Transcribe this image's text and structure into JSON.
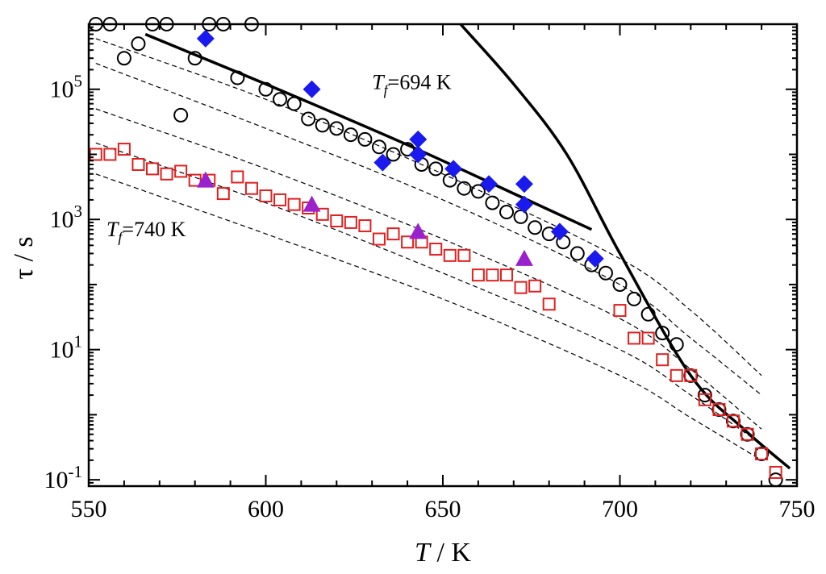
{
  "chart_data": {
    "type": "scatter",
    "x_axis": {
      "label_main": "T",
      "label_unit": " / K",
      "range": [
        550,
        750
      ],
      "ticks": [
        "550",
        "600",
        "650",
        "700",
        "750"
      ]
    },
    "y_axis": {
      "label": "τ / s",
      "scale": "log",
      "range": [
        0.08,
        1000000
      ],
      "ticks": [
        {
          "base": "10",
          "exp": "-1",
          "value": 0.1
        },
        {
          "base": "10",
          "exp": "1",
          "value": 10
        },
        {
          "base": "10",
          "exp": "3",
          "value": 1000
        },
        {
          "base": "10",
          "exp": "5",
          "value": 100000
        }
      ]
    },
    "grid": false,
    "annotations": [
      {
        "main": "T",
        "sub": "f",
        "rest": "=694 K",
        "anchor": [
          630,
          100000
        ]
      },
      {
        "main": "T",
        "sub": "f",
        "rest": "=740 K",
        "anchor": [
          555,
          550
        ]
      }
    ],
    "series": [
      {
        "marker": "open-circle",
        "color": "#000000",
        "points": [
          [
            552,
            1000000
          ],
          [
            556,
            1000000
          ],
          [
            560,
            300000
          ],
          [
            564,
            500000
          ],
          [
            568,
            1000000
          ],
          [
            572,
            1000000
          ],
          [
            580,
            300000
          ],
          [
            584,
            1000000
          ],
          [
            588,
            1000000
          ],
          [
            596,
            1000000
          ],
          [
            576,
            40000
          ],
          [
            592,
            150000
          ],
          [
            600,
            100000
          ],
          [
            604,
            70000
          ],
          [
            608,
            60000
          ],
          [
            612,
            35000
          ],
          [
            616,
            28000
          ],
          [
            620,
            25000
          ],
          [
            624,
            20000
          ],
          [
            628,
            17000
          ],
          [
            632,
            13000
          ],
          [
            636,
            10000
          ],
          [
            640,
            12000
          ],
          [
            644,
            7000
          ],
          [
            648,
            6000
          ],
          [
            652,
            4000
          ],
          [
            656,
            3000
          ],
          [
            660,
            2700
          ],
          [
            664,
            1800
          ],
          [
            668,
            1300
          ],
          [
            672,
            1100
          ],
          [
            676,
            750
          ],
          [
            680,
            600
          ],
          [
            684,
            450
          ],
          [
            688,
            300
          ],
          [
            692,
            200
          ],
          [
            696,
            150
          ],
          [
            700,
            100
          ],
          [
            704,
            60
          ],
          [
            708,
            35
          ],
          [
            712,
            18
          ],
          [
            716,
            12
          ],
          [
            720,
            4
          ],
          [
            724,
            2
          ],
          [
            728,
            1.2
          ],
          [
            732,
            0.8
          ],
          [
            736,
            0.5
          ],
          [
            740,
            0.25
          ],
          [
            744,
            0.1
          ]
        ]
      },
      {
        "marker": "open-square",
        "color": "#e02020",
        "points": [
          [
            552,
            10000
          ],
          [
            556,
            10000
          ],
          [
            560,
            12000
          ],
          [
            564,
            7000
          ],
          [
            568,
            6000
          ],
          [
            572,
            5000
          ],
          [
            576,
            5500
          ],
          [
            580,
            4000
          ],
          [
            584,
            4000
          ],
          [
            588,
            2500
          ],
          [
            592,
            4500
          ],
          [
            596,
            3000
          ],
          [
            600,
            2300
          ],
          [
            604,
            2000
          ],
          [
            608,
            1700
          ],
          [
            612,
            1500
          ],
          [
            616,
            1200
          ],
          [
            620,
            950
          ],
          [
            624,
            900
          ],
          [
            628,
            800
          ],
          [
            632,
            500
          ],
          [
            636,
            600
          ],
          [
            640,
            450
          ],
          [
            644,
            450
          ],
          [
            648,
            350
          ],
          [
            652,
            280
          ],
          [
            656,
            280
          ],
          [
            660,
            140
          ],
          [
            664,
            140
          ],
          [
            668,
            140
          ],
          [
            672,
            90
          ],
          [
            676,
            95
          ],
          [
            680,
            50
          ],
          [
            700,
            40
          ],
          [
            704,
            15
          ],
          [
            708,
            15
          ],
          [
            712,
            7
          ],
          [
            716,
            4
          ],
          [
            720,
            4
          ],
          [
            724,
            1.7
          ],
          [
            728,
            1.2
          ],
          [
            732,
            0.8
          ],
          [
            736,
            0.5
          ],
          [
            740,
            0.25
          ],
          [
            744,
            0.13
          ]
        ]
      },
      {
        "marker": "filled-diamond",
        "color": "#1a1aee",
        "points": [
          [
            583,
            600000
          ],
          [
            613,
            100000
          ],
          [
            633,
            7500
          ],
          [
            643,
            17000
          ],
          [
            643,
            10000
          ],
          [
            653,
            6000
          ],
          [
            663,
            3500
          ],
          [
            673,
            3500
          ],
          [
            673,
            1700
          ],
          [
            683,
            650
          ],
          [
            693,
            250
          ]
        ]
      },
      {
        "marker": "filled-triangle",
        "color": "#9a22cc",
        "points": [
          [
            583,
            4000
          ],
          [
            613,
            1700
          ],
          [
            643,
            650
          ],
          [
            673,
            250
          ]
        ]
      }
    ],
    "lines": [
      {
        "style": "solid",
        "points": [
          [
            566,
            700000
          ],
          [
            600,
            120000
          ],
          [
            640,
            14000
          ],
          [
            670,
            2500
          ],
          [
            692,
            700
          ]
        ]
      },
      {
        "style": "solid",
        "points": [
          [
            655,
            1000000
          ],
          [
            670,
            120000
          ],
          [
            685,
            10000
          ],
          [
            700,
            300
          ],
          [
            720,
            4
          ],
          [
            735,
            0.6
          ],
          [
            748,
            0.15
          ]
        ]
      },
      {
        "style": "dashed",
        "points": [
          [
            552,
            600000
          ],
          [
            600,
            70000
          ],
          [
            650,
            5000
          ],
          [
            700,
            250
          ],
          [
            720,
            40
          ],
          [
            740,
            4
          ]
        ]
      },
      {
        "style": "dashed",
        "points": [
          [
            552,
            250000
          ],
          [
            600,
            25000
          ],
          [
            650,
            2000
          ],
          [
            700,
            100
          ],
          [
            720,
            15
          ],
          [
            740,
            2
          ]
        ]
      },
      {
        "style": "dashed",
        "points": [
          [
            552,
            50000
          ],
          [
            600,
            6000
          ],
          [
            650,
            500
          ],
          [
            700,
            30
          ],
          [
            720,
            5
          ],
          [
            740,
            0.6
          ]
        ]
      },
      {
        "style": "dashed",
        "points": [
          [
            552,
            15000
          ],
          [
            600,
            1800
          ],
          [
            650,
            150
          ],
          [
            700,
            10
          ],
          [
            720,
            2
          ],
          [
            740,
            0.35
          ]
        ]
      },
      {
        "style": "dashed",
        "points": [
          [
            552,
            5000
          ],
          [
            600,
            600
          ],
          [
            650,
            60
          ],
          [
            700,
            4
          ],
          [
            720,
            0.9
          ],
          [
            740,
            0.2
          ]
        ]
      }
    ]
  }
}
